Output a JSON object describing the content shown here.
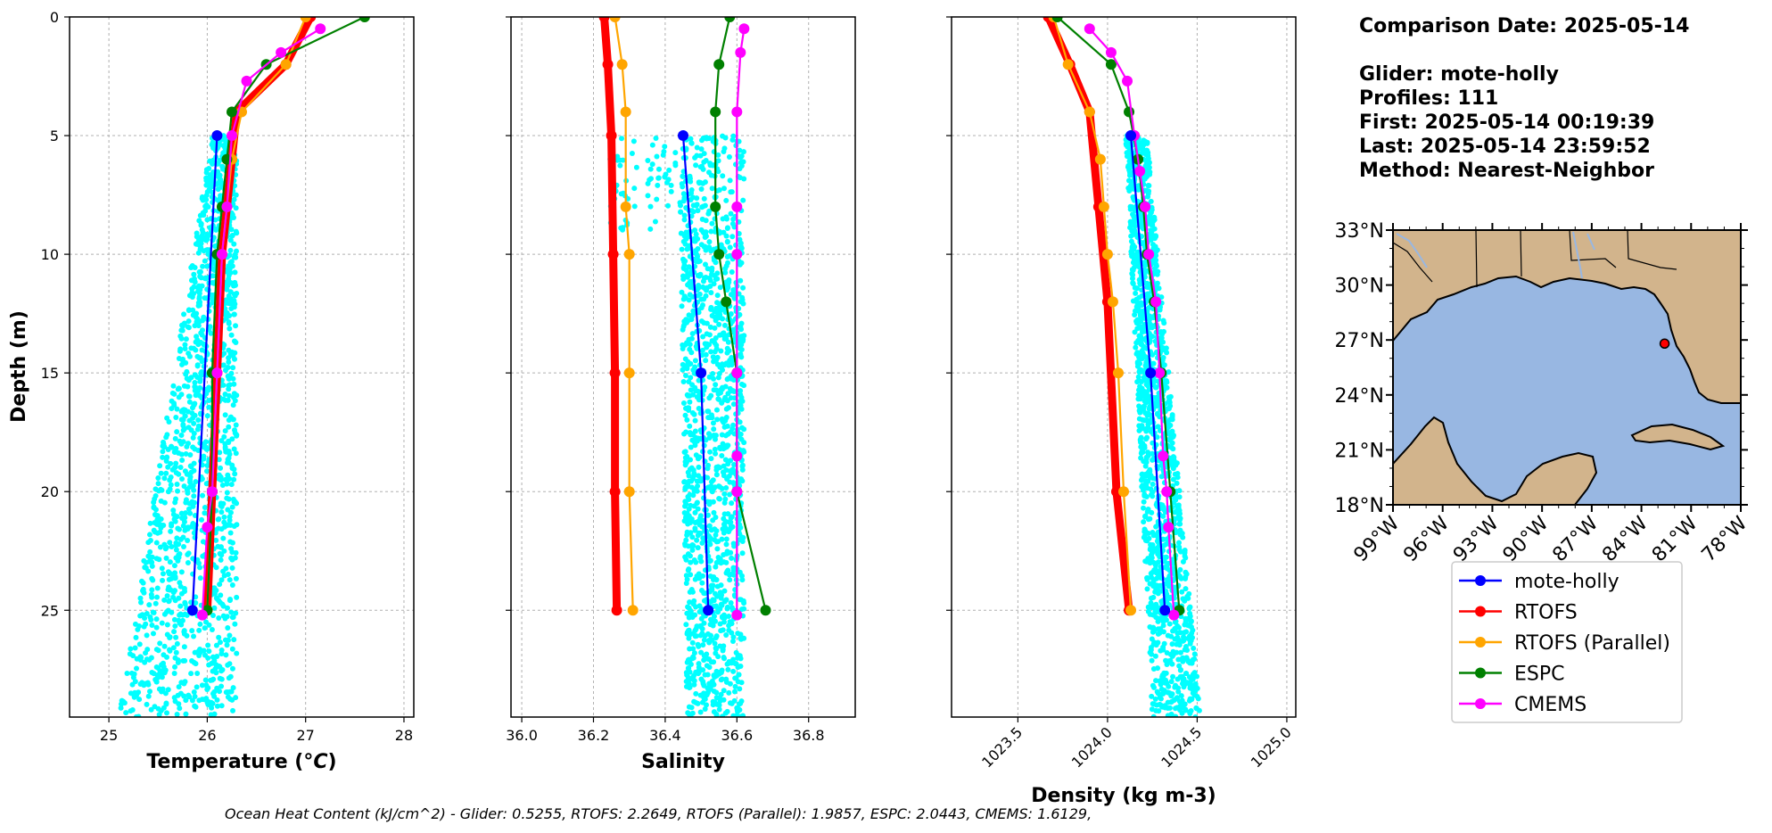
{
  "info": {
    "date_line": "Comparison Date: 2025-05-14",
    "glider_line": "Glider: mote-holly",
    "profiles_line": "Profiles: 111",
    "first_line": "First: 2025-05-14 00:19:39",
    "last_line": "Last: 2025-05-14 23:59:52",
    "method_line": "Method: Nearest-Neighbor"
  },
  "footer": "Ocean Heat Content (kJ/cm^2) - Glider: 0.5255,  RTOFS: 2.2649,  RTOFS (Parallel): 1.9857,  ESPC: 2.0443,  CMEMS: 1.6129,",
  "colors": {
    "glider": "#0000ff",
    "rtofs": "#ff0000",
    "rtofs_parallel": "#ffa500",
    "espc": "#008000",
    "cmems": "#ff00ff",
    "scatter": "#00ffff",
    "land": "#d2b48c",
    "water": "#98b7e2"
  },
  "chart_data": [
    {
      "type": "line",
      "ylabel": "Depth (m)",
      "xlabel": "Temperature (°C)",
      "xlim": [
        24.6,
        28.1
      ],
      "ylim": [
        29.5,
        0
      ],
      "xticks": [
        "25",
        "26",
        "27",
        "28"
      ],
      "yticks": [
        "0",
        "5",
        "10",
        "15",
        "20",
        "25"
      ],
      "grid": true,
      "scatter_range": {
        "x": [
          25.1,
          26.3
        ],
        "depth": [
          5,
          29.5
        ]
      },
      "series": [
        {
          "name": "mote-holly",
          "x": [
            26.1,
            25.85
          ],
          "y": [
            5,
            25
          ]
        },
        {
          "name": "RTOFS",
          "x": [
            27.05,
            26.8,
            26.3,
            26.25,
            26.15,
            26.1,
            26.05,
            26.0
          ],
          "y": [
            0,
            2,
            4,
            6,
            10,
            15,
            20,
            25
          ]
        },
        {
          "name": "RTOFS (Parallel)",
          "x": [
            27.0,
            26.8,
            26.35,
            26.25,
            26.2,
            26.15,
            26.1,
            26.05,
            26.0
          ],
          "y": [
            0,
            2,
            4,
            6,
            8,
            10,
            15,
            20,
            25
          ]
        },
        {
          "name": "ESPC",
          "x": [
            27.6,
            26.6,
            26.25,
            26.2,
            26.15,
            26.1,
            26.05,
            26.05,
            26.0
          ],
          "y": [
            0,
            2,
            4,
            6,
            8,
            10,
            15,
            20,
            25
          ]
        },
        {
          "name": "CMEMS",
          "x": [
            27.15,
            26.75,
            26.4,
            26.25,
            26.2,
            26.15,
            26.1,
            26.05,
            26.0,
            25.95
          ],
          "y": [
            0.5,
            1.5,
            2.7,
            5,
            8,
            10,
            15,
            20,
            21.5,
            25.2
          ]
        }
      ]
    },
    {
      "type": "line",
      "xlabel": "Salinity",
      "xlim": [
        35.97,
        36.93
      ],
      "ylim": [
        29.5,
        0
      ],
      "xticks": [
        "36.0",
        "36.2",
        "36.4",
        "36.6",
        "36.8"
      ],
      "grid": true,
      "scatter_range": {
        "x": [
          36.24,
          36.66
        ],
        "depth": [
          5,
          29.5
        ]
      },
      "series": [
        {
          "name": "mote-holly",
          "x": [
            36.45,
            36.5,
            36.52
          ],
          "y": [
            5,
            15,
            25
          ]
        },
        {
          "name": "RTOFS",
          "x": [
            36.23,
            36.24,
            36.25,
            36.255,
            36.26,
            36.26,
            36.265
          ],
          "y": [
            0,
            2,
            5,
            10,
            15,
            20,
            25
          ]
        },
        {
          "name": "RTOFS (Parallel)",
          "x": [
            36.26,
            36.28,
            36.29,
            36.29,
            36.3,
            36.3,
            36.3,
            36.31
          ],
          "y": [
            0,
            2,
            4,
            8,
            10,
            15,
            20,
            25
          ]
        },
        {
          "name": "ESPC",
          "x": [
            36.58,
            36.55,
            36.54,
            36.54,
            36.55,
            36.57,
            36.6,
            36.6,
            36.68
          ],
          "y": [
            0,
            2,
            4,
            8,
            10,
            12,
            15,
            20,
            25
          ]
        },
        {
          "name": "CMEMS",
          "x": [
            36.62,
            36.61,
            36.6,
            36.6,
            36.6,
            36.6,
            36.6,
            36.6,
            36.6
          ],
          "y": [
            0.5,
            1.5,
            4,
            8,
            10,
            15,
            18.5,
            20,
            25.2
          ]
        }
      ]
    },
    {
      "type": "line",
      "xlabel": "Density (kg m-3)",
      "xlim": [
        1023.13,
        1025.05
      ],
      "ylim": [
        29.5,
        0
      ],
      "xticks": [
        "1023.5",
        "1024.0",
        "1024.5",
        "1025.0"
      ],
      "grid": true,
      "scatter_range": {
        "x": [
          1024.1,
          1024.52
        ],
        "depth": [
          5,
          29.5
        ]
      },
      "series": [
        {
          "name": "mote-holly",
          "x": [
            1024.13,
            1024.24,
            1024.32
          ],
          "y": [
            5,
            15,
            25
          ]
        },
        {
          "name": "RTOFS",
          "x": [
            1023.67,
            1023.79,
            1023.9,
            1023.95,
            1024.0,
            1024.05,
            1024.12
          ],
          "y": [
            0,
            2,
            4,
            8,
            12,
            20,
            25
          ]
        },
        {
          "name": "RTOFS (Parallel)",
          "x": [
            1023.7,
            1023.78,
            1023.9,
            1023.96,
            1023.98,
            1024.0,
            1024.03,
            1024.06,
            1024.09,
            1024.13
          ],
          "y": [
            0,
            2,
            4,
            6,
            8,
            10,
            12,
            15,
            20,
            25
          ]
        },
        {
          "name": "ESPC",
          "x": [
            1023.72,
            1024.02,
            1024.12,
            1024.17,
            1024.2,
            1024.22,
            1024.26,
            1024.3,
            1024.35,
            1024.4
          ],
          "y": [
            0,
            2,
            4,
            6,
            8,
            10,
            12,
            15,
            20,
            25
          ]
        },
        {
          "name": "CMEMS",
          "x": [
            1023.9,
            1024.02,
            1024.11,
            1024.15,
            1024.18,
            1024.21,
            1024.23,
            1024.27,
            1024.29,
            1024.31,
            1024.33,
            1024.34,
            1024.37
          ],
          "y": [
            0.5,
            1.5,
            2.7,
            5,
            6.5,
            8,
            10,
            12,
            15,
            18.5,
            20,
            21.5,
            25.2
          ]
        }
      ]
    },
    {
      "type": "map",
      "lon_range": [
        -99,
        -78
      ],
      "lat_range": [
        18,
        33
      ],
      "xticks": [
        "99°W",
        "96°W",
        "93°W",
        "90°W",
        "87°W",
        "84°W",
        "81°W",
        "78°W"
      ],
      "yticks": [
        "33°N",
        "30°N",
        "27°N",
        "24°N",
        "21°N",
        "18°N"
      ],
      "glider_position": {
        "lon": -82.6,
        "lat": 26.8
      }
    }
  ],
  "legend": {
    "placement": "below-map",
    "items": [
      "mote-holly",
      "RTOFS",
      "RTOFS (Parallel)",
      "ESPC",
      "CMEMS"
    ]
  }
}
